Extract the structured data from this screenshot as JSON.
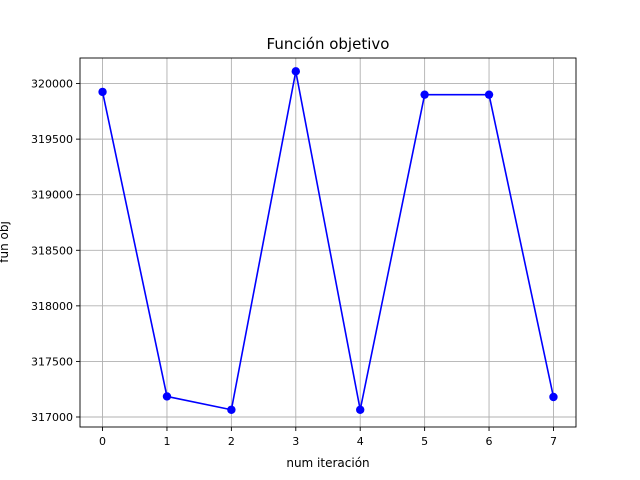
{
  "chart_data": {
    "type": "line",
    "title": "Función objetivo",
    "xlabel": "num iteración",
    "ylabel": "fun obj",
    "x": [
      0,
      1,
      2,
      3,
      4,
      5,
      6,
      7
    ],
    "series": [
      {
        "values": [
          319925,
          317185,
          317065,
          320110,
          317065,
          319900,
          319900,
          317180
        ],
        "color": "#0000ff",
        "marker": "circle"
      }
    ],
    "x_ticks": [
      "0",
      "1",
      "2",
      "3",
      "4",
      "5",
      "6",
      "7"
    ],
    "y_ticks": [
      "317000",
      "317500",
      "318000",
      "318500",
      "319000",
      "319500",
      "320000"
    ],
    "xlim": [
      -0.35,
      7.35
    ],
    "ylim": [
      316910,
      320230
    ],
    "grid": true,
    "legend": "none"
  }
}
